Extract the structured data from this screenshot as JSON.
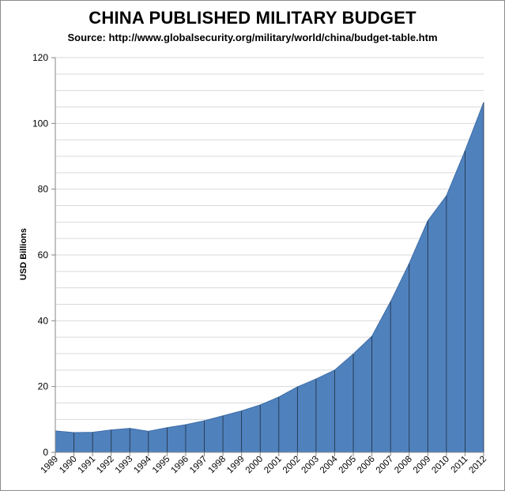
{
  "chart_data": {
    "type": "area",
    "title": "CHINA PUBLISHED MILITARY BUDGET",
    "subtitle": "Source: http://www.globalsecurity.org/military/world/china/budget-table.htm",
    "xlabel": "",
    "ylabel": "USD Billions",
    "ylim": [
      0,
      120
    ],
    "yticks": [
      0,
      20,
      40,
      60,
      80,
      100,
      120
    ],
    "grid": true,
    "legend": "none",
    "fill_color": "#4f81bd",
    "categories": [
      "1989",
      "1990",
      "1991",
      "1992",
      "1993",
      "1994",
      "1995",
      "1996",
      "1997",
      "1998",
      "1999",
      "2000",
      "2001",
      "2002",
      "2003",
      "2004",
      "2005",
      "2006",
      "2007",
      "2008",
      "2009",
      "2010",
      "2011",
      "2012"
    ],
    "series": [
      {
        "name": "China Published Military Budget",
        "values": [
          6.5,
          6.0,
          6.1,
          6.8,
          7.3,
          6.4,
          7.5,
          8.4,
          9.6,
          11.1,
          12.6,
          14.4,
          16.8,
          19.9,
          22.3,
          25.0,
          29.9,
          35.3,
          45.8,
          57.4,
          70.4,
          78.0,
          91.7,
          106.4
        ]
      }
    ]
  }
}
